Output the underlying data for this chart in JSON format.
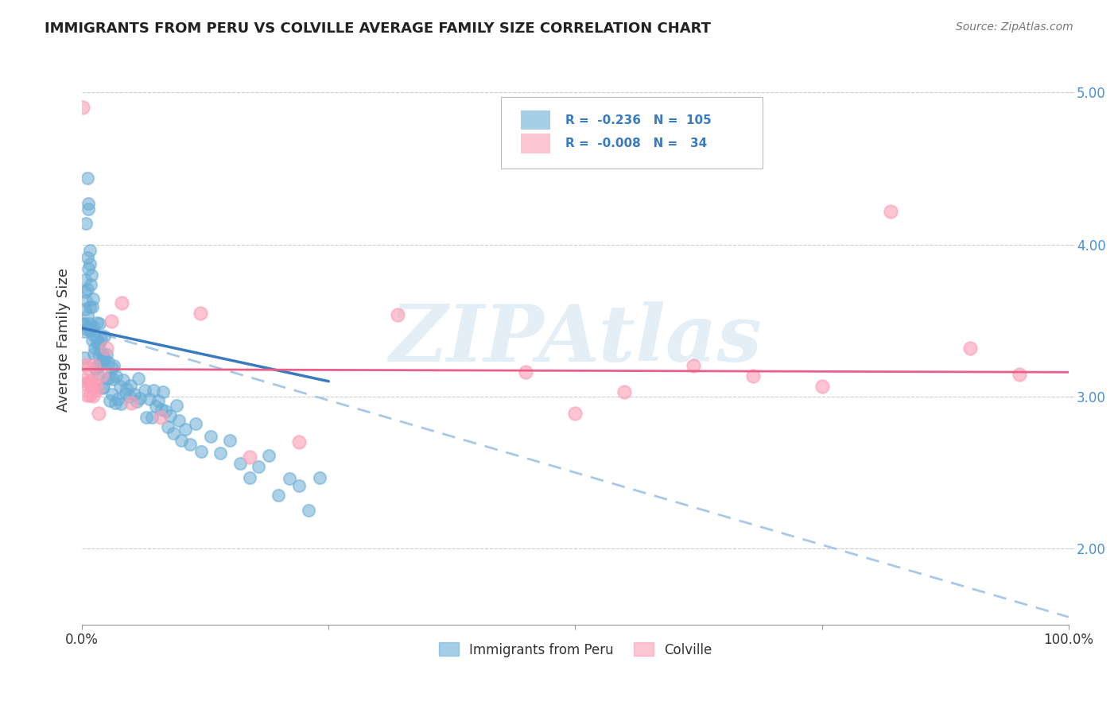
{
  "title": "IMMIGRANTS FROM PERU VS COLVILLE AVERAGE FAMILY SIZE CORRELATION CHART",
  "source": "Source: ZipAtlas.com",
  "ylabel": "Average Family Size",
  "xlim": [
    0,
    1.0
  ],
  "ylim": [
    1.5,
    5.25
  ],
  "yticks": [
    2.0,
    3.0,
    4.0,
    5.0
  ],
  "xticks": [
    0.0,
    0.25,
    0.5,
    0.75,
    1.0
  ],
  "xticklabels": [
    "0.0%",
    "",
    "",
    "",
    "100.0%"
  ],
  "legend_R1": "-0.236",
  "legend_N1": "105",
  "legend_R2": "-0.008",
  "legend_N2": "34",
  "blue_color": "#6baed6",
  "pink_color": "#fc9eb5",
  "trend_blue_solid": "#3a7abf",
  "trend_pink_solid": "#e85f8a",
  "trend_blue_dashed": "#a8c8e8",
  "watermark": "ZIPAtlas",
  "watermark_color": "#c8dff0",
  "background": "#ffffff",
  "peru_x": [
    0.001,
    0.002,
    0.002,
    0.003,
    0.003,
    0.003,
    0.004,
    0.004,
    0.004,
    0.005,
    0.005,
    0.005,
    0.006,
    0.006,
    0.006,
    0.007,
    0.007,
    0.007,
    0.008,
    0.008,
    0.008,
    0.009,
    0.009,
    0.009,
    0.01,
    0.01,
    0.011,
    0.011,
    0.012,
    0.012,
    0.013,
    0.013,
    0.014,
    0.014,
    0.015,
    0.015,
    0.016,
    0.016,
    0.017,
    0.017,
    0.018,
    0.018,
    0.019,
    0.02,
    0.02,
    0.021,
    0.021,
    0.022,
    0.022,
    0.023,
    0.024,
    0.025,
    0.026,
    0.027,
    0.028,
    0.03,
    0.031,
    0.032,
    0.033,
    0.034,
    0.035,
    0.037,
    0.038,
    0.04,
    0.042,
    0.044,
    0.046,
    0.048,
    0.05,
    0.052,
    0.055,
    0.058,
    0.06,
    0.063,
    0.065,
    0.068,
    0.07,
    0.073,
    0.075,
    0.078,
    0.08,
    0.082,
    0.085,
    0.088,
    0.09,
    0.093,
    0.095,
    0.098,
    0.1,
    0.105,
    0.11,
    0.115,
    0.12,
    0.13,
    0.14,
    0.15,
    0.16,
    0.17,
    0.18,
    0.19,
    0.2,
    0.21,
    0.22,
    0.23,
    0.24
  ],
  "peru_y": [
    3.5,
    3.7,
    3.4,
    3.6,
    3.3,
    3.5,
    3.8,
    3.4,
    3.6,
    3.9,
    4.1,
    3.5,
    4.3,
    4.4,
    3.7,
    4.2,
    3.8,
    3.5,
    4.0,
    3.9,
    3.6,
    3.4,
    3.7,
    3.5,
    3.8,
    3.6,
    3.4,
    3.5,
    3.3,
    3.6,
    3.2,
    3.4,
    3.3,
    3.5,
    3.1,
    3.3,
    3.4,
    3.2,
    3.5,
    3.3,
    3.4,
    3.2,
    3.3,
    3.1,
    3.4,
    3.2,
    3.3,
    3.1,
    3.4,
    3.2,
    3.3,
    3.1,
    3.2,
    3.0,
    3.1,
    3.2,
    3.0,
    3.1,
    3.2,
    3.0,
    3.1,
    3.0,
    3.1,
    3.0,
    3.1,
    3.0,
    3.1,
    3.0,
    3.1,
    3.0,
    3.0,
    3.1,
    3.0,
    3.0,
    2.9,
    3.0,
    2.9,
    3.0,
    2.9,
    3.0,
    2.9,
    3.0,
    2.9,
    2.8,
    2.9,
    2.8,
    2.9,
    2.8,
    2.7,
    2.8,
    2.7,
    2.8,
    2.6,
    2.7,
    2.6,
    2.7,
    2.6,
    2.5,
    2.5,
    2.6,
    2.4,
    2.5,
    2.4,
    2.3,
    2.5
  ],
  "colville_x": [
    0.001,
    0.002,
    0.003,
    0.004,
    0.005,
    0.006,
    0.007,
    0.008,
    0.009,
    0.01,
    0.011,
    0.012,
    0.013,
    0.015,
    0.017,
    0.02,
    0.025,
    0.03,
    0.04,
    0.05,
    0.08,
    0.12,
    0.17,
    0.22,
    0.32,
    0.45,
    0.5,
    0.55,
    0.62,
    0.68,
    0.75,
    0.82,
    0.9,
    0.95
  ],
  "colville_y": [
    4.9,
    3.1,
    3.2,
    3.1,
    3.0,
    3.2,
    3.1,
    3.0,
    3.1,
    3.05,
    3.0,
    3.2,
    3.1,
    3.05,
    2.9,
    3.15,
    3.3,
    3.5,
    3.6,
    2.95,
    2.85,
    3.55,
    2.6,
    2.7,
    3.55,
    3.15,
    2.9,
    3.05,
    3.2,
    3.15,
    3.05,
    4.2,
    3.3,
    3.15
  ]
}
